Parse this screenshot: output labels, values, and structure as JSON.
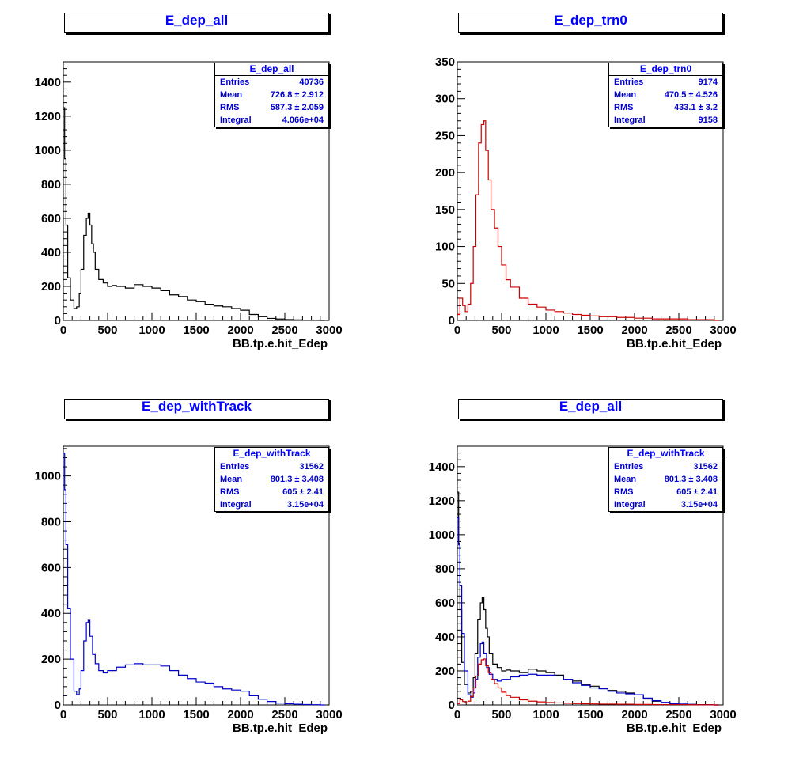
{
  "chart_data": [
    {
      "type": "line",
      "title": "E_dep_all",
      "xlabel": "BB.tp.e.hit_Edep",
      "xlim": [
        0,
        3000
      ],
      "ylim": [
        0,
        1520
      ],
      "xticks": [
        0,
        500,
        1000,
        1500,
        2000,
        2500,
        3000
      ],
      "yticks": [
        0,
        200,
        400,
        600,
        800,
        1000,
        1200,
        1400
      ],
      "stats": {
        "name": "E_dep_all",
        "entries": "40736",
        "mean": "726.8 ±  2.912",
        "rms": "587.3 ±  2.059",
        "integral": "4.066e+04"
      },
      "series": [
        {
          "color": "#000000",
          "x": [
            0,
            15,
            30,
            50,
            80,
            120,
            150,
            180,
            200,
            230,
            260,
            280,
            300,
            320,
            340,
            360,
            400,
            450,
            500,
            550,
            600,
            700,
            800,
            900,
            1000,
            1100,
            1200,
            1300,
            1400,
            1500,
            1600,
            1700,
            1800,
            1900,
            2000,
            2100,
            2200,
            2300,
            2400,
            2500,
            2600,
            2700,
            2800,
            2900
          ],
          "y": [
            1250,
            950,
            560,
            250,
            120,
            70,
            80,
            160,
            300,
            500,
            600,
            630,
            560,
            450,
            400,
            300,
            240,
            220,
            200,
            205,
            200,
            190,
            210,
            200,
            190,
            175,
            150,
            140,
            120,
            110,
            95,
            85,
            80,
            70,
            60,
            35,
            22,
            12,
            8,
            5,
            3,
            2,
            1,
            0
          ]
        }
      ]
    },
    {
      "type": "line",
      "title": "E_dep_trn0",
      "xlabel": "BB.tp.e.hit_Edep",
      "xlim": [
        0,
        3000
      ],
      "ylim": [
        0,
        350
      ],
      "xticks": [
        0,
        500,
        1000,
        1500,
        2000,
        2500,
        3000
      ],
      "yticks": [
        0,
        50,
        100,
        150,
        200,
        250,
        300,
        350
      ],
      "stats": {
        "name": "E_dep_trn0",
        "entries": "9174",
        "mean": "470.5 ±  4.526",
        "rms": "433.1 ±   3.2",
        "integral": "9158"
      },
      "series": [
        {
          "color": "#cc0000",
          "x": [
            0,
            30,
            60,
            90,
            120,
            150,
            180,
            210,
            240,
            270,
            300,
            320,
            350,
            380,
            420,
            460,
            500,
            550,
            600,
            700,
            800,
            900,
            1000,
            1100,
            1200,
            1300,
            1400,
            1500,
            1600,
            1800,
            2000,
            2200,
            2400,
            2600,
            2800,
            2900
          ],
          "y": [
            8,
            30,
            20,
            12,
            22,
            50,
            100,
            170,
            240,
            265,
            270,
            230,
            190,
            150,
            125,
            100,
            75,
            55,
            45,
            30,
            22,
            18,
            14,
            12,
            10,
            8,
            7,
            6,
            5,
            4,
            3,
            2,
            2,
            1,
            1,
            0
          ]
        }
      ]
    },
    {
      "type": "line",
      "title": "E_dep_withTrack",
      "xlabel": "BB.tp.e.hit_Edep",
      "xlim": [
        0,
        3000
      ],
      "ylim": [
        0,
        1130
      ],
      "xticks": [
        0,
        500,
        1000,
        1500,
        2000,
        2500,
        3000
      ],
      "yticks": [
        0,
        200,
        400,
        600,
        800,
        1000
      ],
      "stats": {
        "name": "E_dep_withTrack",
        "entries": "31562",
        "mean": "801.3 ±  3.408",
        "rms": "605 ±   2.41",
        "integral": "3.15e+04"
      },
      "series": [
        {
          "color": "#0000cc",
          "x": [
            0,
            15,
            30,
            50,
            80,
            120,
            150,
            180,
            200,
            230,
            260,
            280,
            300,
            330,
            360,
            400,
            450,
            500,
            550,
            600,
            700,
            800,
            900,
            1000,
            1100,
            1200,
            1300,
            1400,
            1500,
            1600,
            1700,
            1800,
            1900,
            2000,
            2100,
            2200,
            2300,
            2400,
            2500,
            2600,
            2700,
            2800,
            2900
          ],
          "y": [
            1100,
            940,
            700,
            420,
            200,
            60,
            45,
            70,
            150,
            280,
            360,
            370,
            300,
            220,
            180,
            150,
            140,
            150,
            150,
            165,
            175,
            180,
            175,
            175,
            170,
            150,
            130,
            115,
            100,
            95,
            80,
            70,
            65,
            60,
            40,
            25,
            15,
            8,
            5,
            3,
            2,
            1,
            0
          ]
        }
      ]
    },
    {
      "type": "line",
      "title": "E_dep_all",
      "xlabel": "BB.tp.e.hit_Edep",
      "xlim": [
        0,
        3000
      ],
      "ylim": [
        0,
        1520
      ],
      "xticks": [
        0,
        500,
        1000,
        1500,
        2000,
        2500,
        3000
      ],
      "yticks": [
        0,
        200,
        400,
        600,
        800,
        1000,
        1200,
        1400
      ],
      "stats": {
        "name": "E_dep_withTrack",
        "entries": "31562",
        "mean": "801.3 ±  3.408",
        "rms": "605 ±   2.41",
        "integral": "3.15e+04"
      },
      "series": [
        {
          "color": "#000000",
          "x": [
            0,
            15,
            30,
            50,
            80,
            120,
            150,
            180,
            200,
            230,
            260,
            280,
            300,
            320,
            340,
            360,
            400,
            450,
            500,
            550,
            600,
            700,
            800,
            900,
            1000,
            1100,
            1200,
            1300,
            1400,
            1500,
            1600,
            1700,
            1800,
            1900,
            2000,
            2100,
            2200,
            2300,
            2400,
            2500,
            2600,
            2700,
            2800,
            2900
          ],
          "y": [
            1250,
            950,
            560,
            250,
            120,
            70,
            80,
            160,
            300,
            500,
            600,
            630,
            560,
            450,
            400,
            300,
            240,
            220,
            200,
            205,
            200,
            190,
            210,
            200,
            190,
            175,
            150,
            140,
            120,
            110,
            95,
            85,
            80,
            70,
            60,
            35,
            22,
            12,
            8,
            5,
            3,
            2,
            1,
            0
          ]
        },
        {
          "color": "#0000cc",
          "x": [
            0,
            15,
            30,
            50,
            80,
            120,
            150,
            180,
            200,
            230,
            260,
            280,
            300,
            330,
            360,
            400,
            450,
            500,
            550,
            600,
            700,
            800,
            900,
            1000,
            1100,
            1200,
            1300,
            1400,
            1500,
            1600,
            1700,
            1800,
            1900,
            2000,
            2100,
            2200,
            2300,
            2400,
            2500,
            2600,
            2700,
            2800,
            2900
          ],
          "y": [
            1100,
            940,
            700,
            420,
            200,
            60,
            45,
            70,
            150,
            280,
            360,
            370,
            300,
            220,
            180,
            150,
            140,
            150,
            150,
            165,
            175,
            180,
            175,
            175,
            170,
            150,
            130,
            115,
            100,
            95,
            80,
            70,
            65,
            60,
            40,
            25,
            15,
            8,
            5,
            3,
            2,
            1,
            0
          ]
        },
        {
          "color": "#cc0000",
          "x": [
            0,
            30,
            60,
            90,
            120,
            150,
            180,
            210,
            240,
            270,
            300,
            320,
            350,
            380,
            420,
            460,
            500,
            550,
            600,
            700,
            800,
            900,
            1000,
            1100,
            1200,
            1300,
            1400,
            1500,
            1600,
            1800,
            2000,
            2200,
            2400,
            2600,
            2800,
            2900
          ],
          "y": [
            8,
            30,
            20,
            12,
            22,
            50,
            100,
            170,
            240,
            265,
            270,
            230,
            190,
            150,
            125,
            100,
            75,
            55,
            45,
            30,
            22,
            18,
            14,
            12,
            10,
            8,
            7,
            6,
            5,
            4,
            3,
            2,
            2,
            1,
            1,
            0
          ]
        }
      ]
    }
  ],
  "stat_labels": {
    "entries": "Entries",
    "mean": "Mean",
    "rms": "RMS",
    "integral": "Integral"
  }
}
